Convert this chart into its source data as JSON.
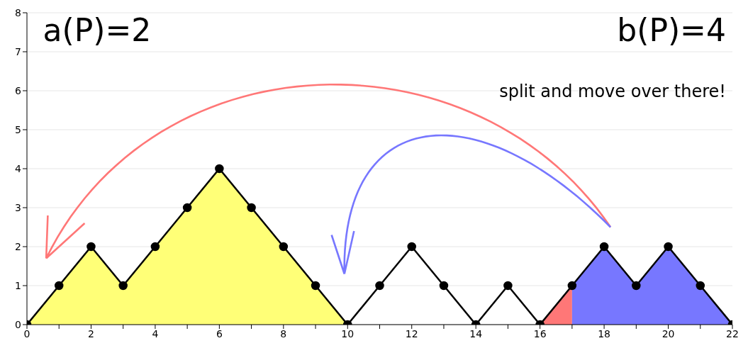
{
  "chart_data": {
    "type": "line",
    "x": [
      0,
      1,
      2,
      3,
      4,
      5,
      6,
      7,
      8,
      9,
      10,
      11,
      12,
      13,
      14,
      15,
      16,
      17,
      18,
      19,
      20,
      21,
      22
    ],
    "series": [
      {
        "type": "area",
        "color": "#ffff77",
        "x": [
          0,
          1,
          2,
          3,
          4,
          5,
          6,
          7,
          8,
          9,
          10
        ],
        "values": [
          0,
          1,
          2,
          1,
          2,
          3,
          4,
          3,
          2,
          1,
          0
        ]
      },
      {
        "type": "area",
        "color": "#ff7777",
        "x": [
          16,
          17
        ],
        "values": [
          0,
          1
        ]
      },
      {
        "type": "area",
        "color": "#7777ff",
        "x": [
          17,
          18,
          19,
          20,
          21,
          22
        ],
        "values": [
          1,
          2,
          1,
          2,
          1,
          0
        ]
      },
      {
        "color": "#000000",
        "marker": "circle",
        "values": [
          0,
          1,
          2,
          1,
          2,
          3,
          4,
          3,
          2,
          1,
          0,
          1,
          2,
          1,
          0,
          1,
          0,
          1,
          2,
          1,
          2,
          1,
          0
        ]
      }
    ],
    "grid": "y",
    "xlim": [
      0,
      22
    ],
    "xticks": [
      0,
      {
        "value": 1,
        "label": null
      },
      2,
      {
        "value": 3,
        "label": null
      },
      4,
      {
        "value": 5,
        "label": null
      },
      6,
      {
        "value": 7,
        "label": null
      },
      8,
      {
        "value": 9,
        "label": null
      },
      10,
      {
        "value": 11,
        "label": null
      },
      12,
      {
        "value": 13,
        "label": null
      },
      14,
      {
        "value": 15,
        "label": null
      },
      16,
      {
        "value": 17,
        "label": null
      },
      18,
      {
        "value": 19,
        "label": null
      },
      20,
      {
        "value": 21,
        "label": null
      },
      22
    ],
    "ylim": [
      0,
      8
    ],
    "yticks": [
      0,
      1,
      2,
      3,
      4,
      5,
      6,
      7,
      8
    ],
    "annotations": [
      "a(P)=2",
      "b(P)=4",
      "split and move over there!"
    ]
  }
}
